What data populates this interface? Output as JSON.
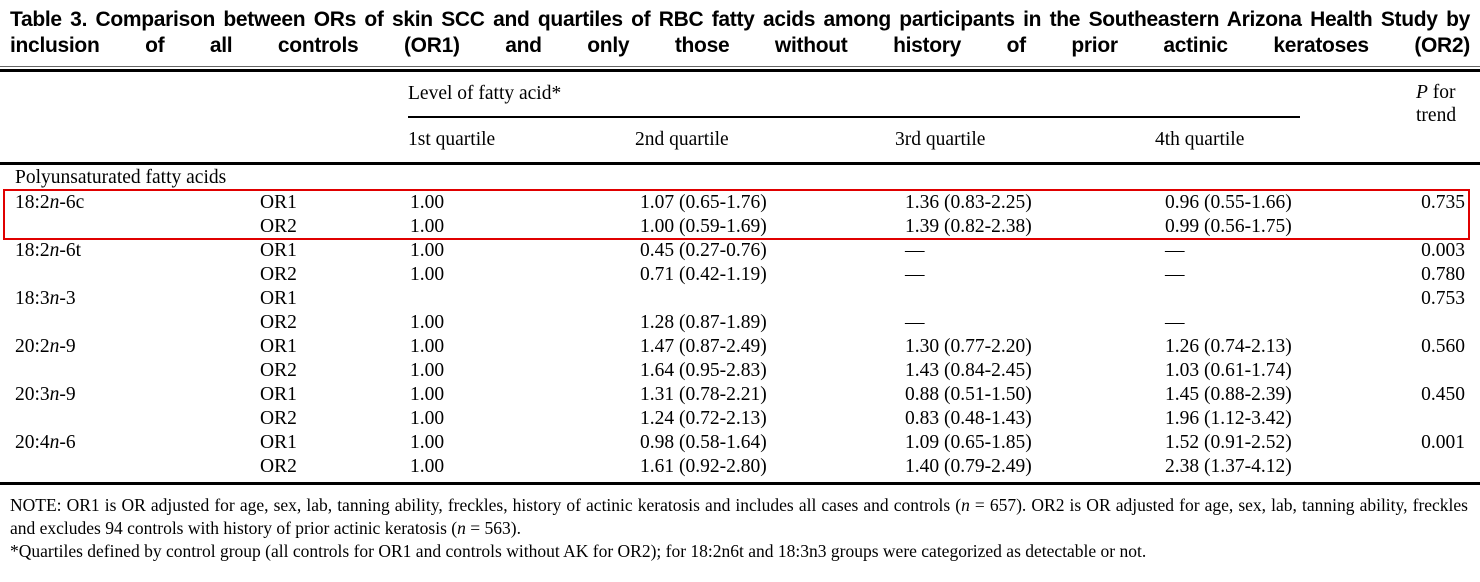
{
  "title": "Table 3. Comparison between ORs of skin SCC and quartiles of RBC fatty acids among participants in the Southeastern Arizona Health Study by inclusion of all controls (OR1) and only those without history of prior actinic keratoses (OR2)",
  "header": {
    "group_label": "Level of fatty acid*",
    "quartiles": [
      "1st quartile",
      "2nd quartile",
      "3rd quartile",
      "4th quartile"
    ],
    "p_italic": "P",
    "p_rest": " for trend"
  },
  "section_label": "Polyunsaturated fatty acids",
  "rows": [
    {
      "name": {
        "pre": "18:2",
        "it": "n",
        "post": "-6c"
      },
      "or": "OR1",
      "q1": "1.00",
      "q2": "1.07 (0.65-1.76)",
      "q3": "1.36 (0.83-2.25)",
      "q4": "0.96 (0.55-1.66)",
      "p": "0.735",
      "highlighted": true
    },
    {
      "or": "OR2",
      "q1": "1.00",
      "q2": "1.00 (0.59-1.69)",
      "q3": "1.39 (0.82-2.38)",
      "q4": "0.99 (0.56-1.75)",
      "highlighted": true
    },
    {
      "name": {
        "pre": "18:2",
        "it": "n",
        "post": "-6t"
      },
      "or": "OR1",
      "q1": "1.00",
      "q2": "0.45 (0.27-0.76)",
      "q3": "—",
      "q4": "—",
      "p": "0.003"
    },
    {
      "or": "OR2",
      "q1": "1.00",
      "q2": "0.71 (0.42-1.19)",
      "q3": "—",
      "q4": "—",
      "p": "0.780"
    },
    {
      "name": {
        "pre": "18:3",
        "it": "n",
        "post": "-3"
      },
      "or": "OR1",
      "p": "0.753"
    },
    {
      "or": "OR2",
      "q1": "1.00",
      "q2": "1.28 (0.87-1.89)",
      "q3": "—",
      "q4": "—"
    },
    {
      "name": {
        "pre": "20:2",
        "it": "n",
        "post": "-9"
      },
      "or": "OR1",
      "q1": "1.00",
      "q2": "1.47 (0.87-2.49)",
      "q3": "1.30 (0.77-2.20)",
      "q4": "1.26 (0.74-2.13)",
      "p": "0.560"
    },
    {
      "or": "OR2",
      "q1": "1.00",
      "q2": "1.64 (0.95-2.83)",
      "q3": "1.43 (0.84-2.45)",
      "q4": "1.03 (0.61-1.74)"
    },
    {
      "name": {
        "pre": "20:3",
        "it": "n",
        "post": "-9"
      },
      "or": "OR1",
      "q1": "1.00",
      "q2": "1.31 (0.78-2.21)",
      "q3": "0.88 (0.51-1.50)",
      "q4": "1.45 (0.88-2.39)",
      "p": "0.450"
    },
    {
      "or": "OR2",
      "q1": "1.00",
      "q2": "1.24 (0.72-2.13)",
      "q3": "0.83 (0.48-1.43)",
      "q4": "1.96 (1.12-3.42)"
    },
    {
      "name": {
        "pre": "20:4",
        "it": "n",
        "post": "-6"
      },
      "or": "OR1",
      "q1": "1.00",
      "q2": "0.98 (0.58-1.64)",
      "q3": "1.09 (0.65-1.85)",
      "q4": "1.52 (0.91-2.52)",
      "p": "0.001"
    },
    {
      "or": "OR2",
      "q1": "1.00",
      "q2": "1.61 (0.92-2.80)",
      "q3": "1.40 (0.79-2.49)",
      "q4": "2.38 (1.37-4.12)"
    }
  ],
  "notes": {
    "note1a": "NOTE: OR1 is OR adjusted for age, sex, lab, tanning ability, freckles, history of actinic keratosis and includes all cases and controls (",
    "note1b": "n",
    "note1c": " = 657). OR2 is OR adjusted for age, sex, lab, tanning ability, freckles and excludes 94 controls with history of prior actinic keratosis (",
    "note1d": "n",
    "note1e": " = 563).",
    "note2": "*Quartiles defined by control group (all controls for OR1 and controls without AK for OR2); for 18:2n6t and 18:3n3 groups were categorized as detectable or not."
  },
  "colors": {
    "highlight_border": "#e00000",
    "text": "#000000",
    "rule": "#000000"
  }
}
